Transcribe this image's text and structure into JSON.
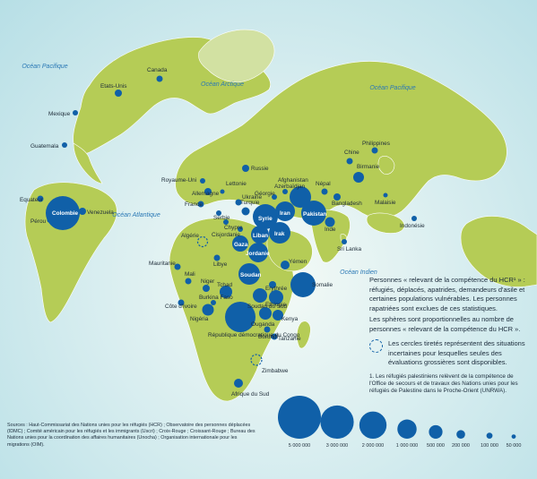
{
  "oceans": {
    "pacific_west": "Océan Pacifique",
    "pacific_east": "Océan Pacifique",
    "arctic": "Océan Arctique",
    "atlantic": "Océan Atlantique",
    "indian": "Océan Indien"
  },
  "countries": {
    "canada": "Canada",
    "usa": "Etats-Unis",
    "mexico": "Mexique",
    "guatemala": "Guatemala",
    "ecuador": "Equateur",
    "colombia": "Colombie",
    "venezuela": "Venezuela",
    "peru": "Pérou",
    "uk": "Royaume-Uni",
    "germany": "Allemagne",
    "france": "France",
    "serbia": "Serbie",
    "latvia": "Lettonie",
    "ukraine": "Ukraine",
    "russia": "Russie",
    "turkey": "Turquie",
    "cyprus": "Chypre",
    "cisjordanie": "Cisjordanie",
    "georgia": "Géorgie",
    "azerbaijan": "Azerbaïdjan",
    "afghanistan": "Afghanistan",
    "syria": "Syrie",
    "iran": "Iran",
    "lebanon": "Liban",
    "iraq": "Irak",
    "gaza": "Gaza",
    "jordan": "Jordanie",
    "pakistan": "Pakistan",
    "nepal": "Népal",
    "china": "Chine",
    "burma": "Birmanie",
    "bangladesh": "Bangladesh",
    "india": "Inde",
    "srilanka": "Sri Lanka",
    "philippines": "Philippines",
    "malaysia": "Malaisie",
    "indonesia": "Indonésie",
    "algeria": "Algérie",
    "libya": "Libye",
    "mauritania": "Mauritanie",
    "mali": "Mali",
    "niger": "Niger",
    "chad": "Tchad",
    "burkina": "Burkina Faso",
    "ivorycoast": "Côte d'Ivoire",
    "nigeria": "Nigéria",
    "sudan": "Soudan",
    "southsudan": "Soudan du Sud",
    "eritrea": "Erythrée",
    "ethiopia": "Ethiopie",
    "yemen": "Yémen",
    "somalia": "Somalie",
    "uganda": "Ouganda",
    "kenya": "Kenya",
    "rdc": "République démocratique du Congo",
    "burundi": "Burundi",
    "tanzania": "Tanzanie",
    "zimbabwe": "Zimbabwe",
    "southafrica": "Afrique du Sud"
  },
  "legend": {
    "title": "Personnes « relevant de la compétence du HCR¹ » : réfugiés, déplacés, apatrides, demandeurs d'asile et certaines populations vulnérables. Les personnes rapatriées sont exclues de ces statistiques.",
    "circles_note": "Les sphères sont proportionnelles au nombre de personnes « relevant de la compétence du HCR ».",
    "dashed_note": "Les cercles tiretés représentent des situations incertaines pour lesquelles seules des évaluations grossières sont disponibles.",
    "footnote": "1. Les réfugiés palestiniens relèvent de la compétence de l'Office de secours et de travaux des Nations unies pour les réfugiés de Palestine dans le Proche-Orient (UNRWA).",
    "scale": [
      {
        "value": 5000000,
        "label": "5 000 000"
      },
      {
        "value": 3000000,
        "label": "3 000 000"
      },
      {
        "value": 2000000,
        "label": "2 000 000"
      },
      {
        "value": 1000000,
        "label": "1 000 000"
      },
      {
        "value": 500000,
        "label": "500 000"
      },
      {
        "value": 200000,
        "label": "200 000"
      },
      {
        "value": 100000,
        "label": "100 000"
      },
      {
        "value": 50000,
        "label": "50 000"
      }
    ]
  },
  "sources": "Sources : Haut-Commissariat des Nations unies pour les réfugiés (HCR) ; Observatoire des personnes déplacées (IDMC) ; Comité américain pour les réfugiés et les immigrants (Uscri) ; Croix-Rouge ; Croissant-Rouge ; Bureau des Nations unies pour la coordination des affaires humanitaires (Unocha) ; Organisation internationale pour les migrations (OIM).",
  "colors": {
    "ocean": "#c8e6ea",
    "land": "#b5cc56",
    "ice": "#d2e1a2",
    "bubble": "#1060a8",
    "ocean_label": "#2a78b5"
  }
}
